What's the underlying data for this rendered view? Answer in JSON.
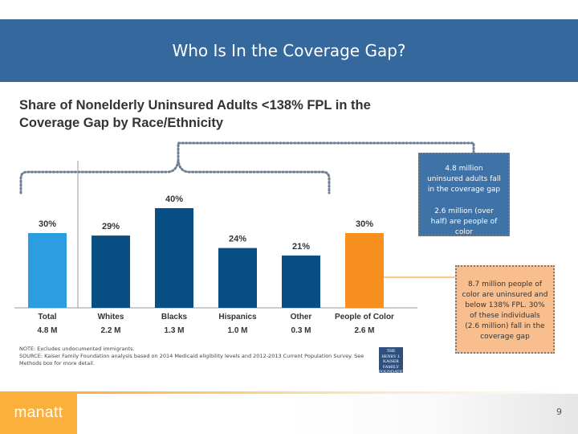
{
  "header": {
    "title": "Who Is In the Coverage Gap?"
  },
  "chart_data": {
    "type": "bar",
    "title": "Share of Nonelderly Uninsured Adults <138% FPL in the Coverage Gap by Race/Ethnicity",
    "categories": [
      "Total",
      "Whites",
      "Blacks",
      "Hispanics",
      "Other",
      "People of Color"
    ],
    "values": [
      30,
      29,
      40,
      24,
      21,
      30
    ],
    "value_labels": [
      "30%",
      "29%",
      "40%",
      "24%",
      "21%",
      "30%"
    ],
    "counts": [
      "4.8 M",
      "2.2 M",
      "1.3 M",
      "1.0 M",
      "0.3 M",
      "2.6 M"
    ],
    "colors": [
      "#2b9de0",
      "#084f86",
      "#084f86",
      "#084f86",
      "#084f86",
      "#f7901e"
    ],
    "ylim": [
      0,
      50
    ],
    "xlabel": "",
    "ylabel": ""
  },
  "callouts": {
    "coverage_gap": "4.8 million uninsured adults fall in the coverage gap",
    "people_of_color": "2.6 million (over half) are people of color",
    "orange_note": "8.7 million people of color are uninsured and below 138% FPL. 30% of these individuals (2.6 million) fall in the coverage gap"
  },
  "notes": {
    "note": "NOTE: Excludes undocumented immigrants.",
    "source": "SOURCE: Kaiser Family Foundation analysis based on 2014 Medicaid eligibility levels and 2012-2013 Current Population Survey. See Methods box for more detail."
  },
  "logo": {
    "line1": "THE HENRY J.",
    "line2": "KAISER",
    "line3": "FAMILY",
    "line4": "FOUNDATION"
  },
  "footer": {
    "brand": "manatt",
    "page_number": "9"
  },
  "colors": {
    "header_bg": "#35689d",
    "accent_orange": "#f7901e",
    "accent_blue": "#2b9de0",
    "dark_blue": "#084f86"
  }
}
